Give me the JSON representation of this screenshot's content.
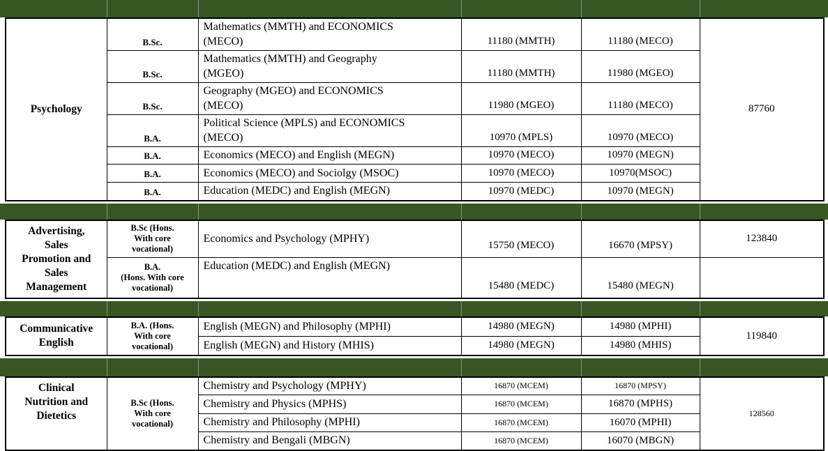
{
  "table": {
    "colors": {
      "band_green": "#375623",
      "border_black": "#000000",
      "band_separator": "#8f8f8f"
    },
    "sections": [
      {
        "subject": "Psychology",
        "total": "87760",
        "rows": [
          {
            "degree": "B.Sc.",
            "combination": "Mathematics (MMTH) and ECONOMICS\n(MECO)",
            "fee1": "11180 (MMTH)",
            "fee2": "11180 (MECO)"
          },
          {
            "degree": "B.Sc.",
            "combination": "Mathematics (MMTH) and Geography\n(MGEO)",
            "fee1": "11180 (MMTH)",
            "fee2": "11980 (MGEO)"
          },
          {
            "degree": "B.Sc.",
            "combination": "Geography (MGEO)  and ECONOMICS\n(MECO)",
            "fee1": "11980 (MGEO)",
            "fee2": "11180 (MECO)"
          },
          {
            "degree": "B.A.",
            "combination": "Political Science (MPLS) and ECONOMICS\n(MECO)",
            "fee1": "10970 (MPLS)",
            "fee2": "10970 (MECO)"
          },
          {
            "degree": "B.A.",
            "combination": "Economics (MECO) and English (MEGN)",
            "fee1": "10970 (MECO)",
            "fee2": "10970 (MEGN)"
          },
          {
            "degree": "B.A.",
            "combination": "Economics (MECO) and Sociolgy (MSOC)",
            "fee1": "10970 (MECO)",
            "fee2": "10970(MSOC)"
          },
          {
            "degree": "B.A.",
            "combination": "Education (MEDC) and English (MEGN)",
            "fee1": "10970 (MEDC)",
            "fee2": "10970 (MEGN)"
          }
        ]
      },
      {
        "subject": "Advertising,\nSales\nPromotion and\nSales\nManagement",
        "total": "123840",
        "total_row2": "",
        "rows": [
          {
            "degree": "B.Sc (Hons.\nWith core\nvocational)",
            "combination": "Economics and Psychology (MPHY)",
            "fee1": "15750 (MECO)",
            "fee2": "16670 (MPSY)"
          },
          {
            "degree": "B.A.\n(Hons. With core\nvocational)",
            "combination": "Education (MEDC) and English (MEGN)",
            "fee1": "15480 (MEDC)",
            "fee2": "15480 (MEGN)"
          }
        ]
      },
      {
        "subject": "Communicative\nEnglish",
        "total": "119840",
        "rows": [
          {
            "degree": "B.A. (Hons.\nWith core\nvocational)",
            "combination": "English (MEGN) and Philosophy (MPHI)",
            "fee1": "14980 (MEGN)",
            "fee2": "14980 (MPHI)"
          },
          {
            "degree": "",
            "combination": "English (MEGN) and History (MHIS)",
            "fee1": "14980 (MEGN)",
            "fee2": "14980 (MHIS)"
          }
        ]
      },
      {
        "subject": "Clinical\nNutrition and\nDietetics",
        "total": "128560",
        "rows": [
          {
            "degree": "B.Sc (Hons.\nWith core\nvocational)",
            "combination": "Chemistry and Psychology (MPHY)",
            "fee1": "16870 (MCEM)",
            "fee2": "16870 (MPSY)"
          },
          {
            "degree": "",
            "combination": "Chemistry and Physics (MPHS)",
            "fee1": "16870 (MCEM)",
            "fee2": "16870 (MPHS)"
          },
          {
            "degree": "",
            "combination": "Chemistry and Philosophy (MPHI)",
            "fee1": "16870 (MCEM)",
            "fee2": "16070 (MPHI)"
          },
          {
            "degree": "",
            "combination": "Chemistry and Bengali (MBGN)",
            "fee1": "16870 (MCEM)",
            "fee2": "16070 (MBGN)"
          }
        ]
      }
    ]
  }
}
